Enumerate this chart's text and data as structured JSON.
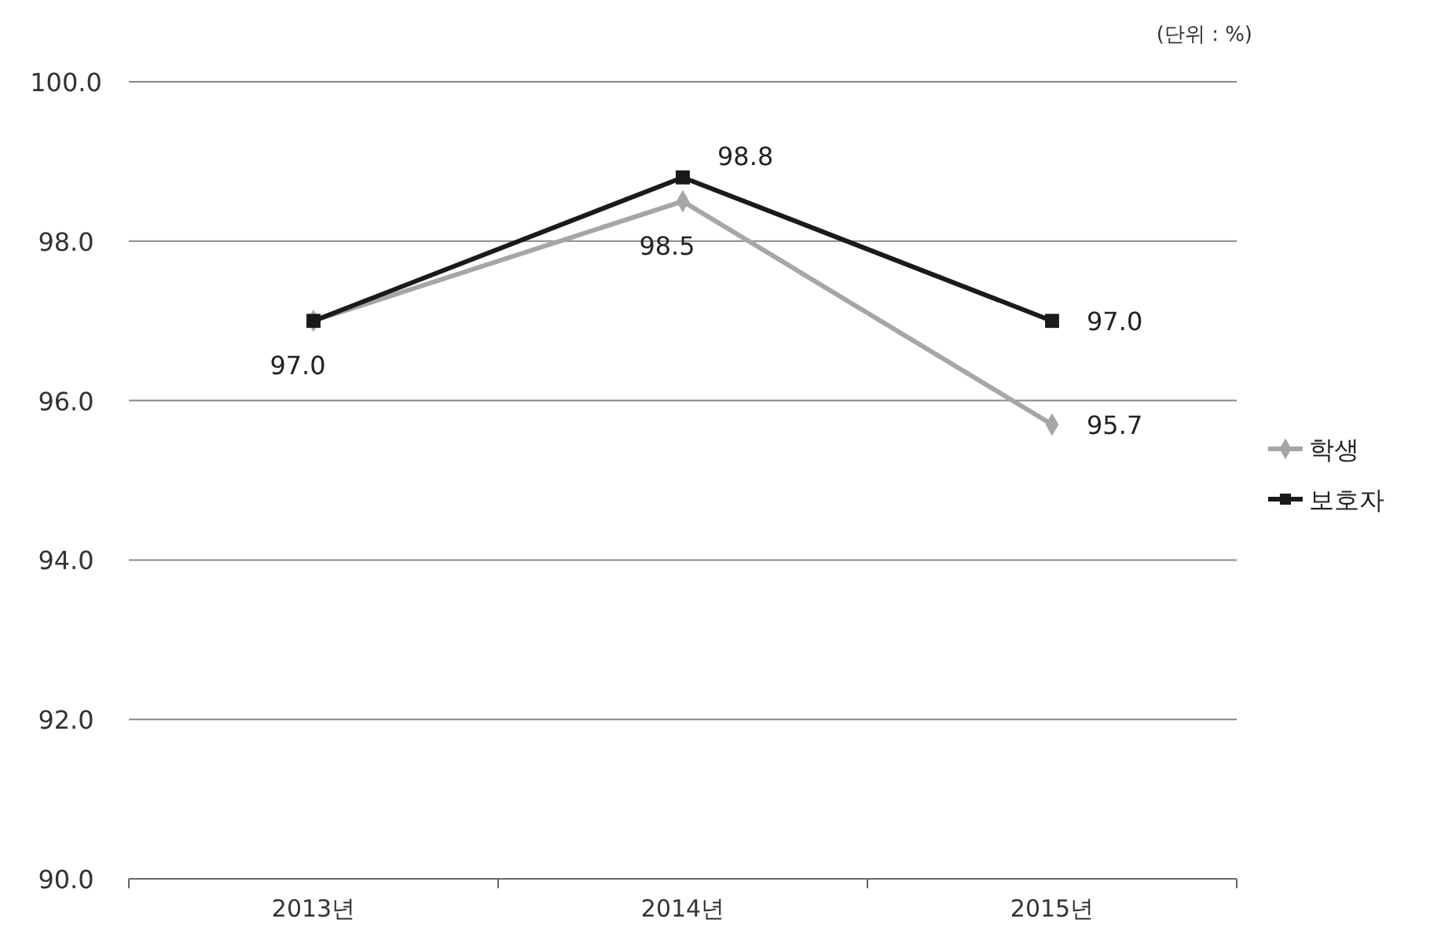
{
  "chart_data": {
    "type": "line",
    "categories": [
      "2013년",
      "2014년",
      "2015년"
    ],
    "series": [
      {
        "name": "학생",
        "color": "#a6a6a6",
        "marker": "diamond",
        "values": [
          97.0,
          98.5,
          95.7
        ],
        "value_labels": [
          "97.0",
          "98.5",
          "95.7"
        ]
      },
      {
        "name": "보호자",
        "color": "#1a1a1a",
        "marker": "square",
        "values": [
          97.0,
          98.8,
          97.0
        ],
        "value_labels": [
          null,
          "98.8",
          "97.0"
        ]
      }
    ],
    "ylim": [
      90,
      100
    ],
    "yticks": [
      {
        "value": 90,
        "label": "90.0"
      },
      {
        "value": 92,
        "label": "92.0"
      },
      {
        "value": 94,
        "label": "94.0"
      },
      {
        "value": 96,
        "label": "96.0"
      },
      {
        "value": 98,
        "label": "98.0"
      },
      {
        "value": 100,
        "label": "100.0"
      }
    ],
    "grid": "y",
    "legend": "right",
    "line_style": "solid",
    "annotations": [
      "(단위 : %)"
    ]
  }
}
